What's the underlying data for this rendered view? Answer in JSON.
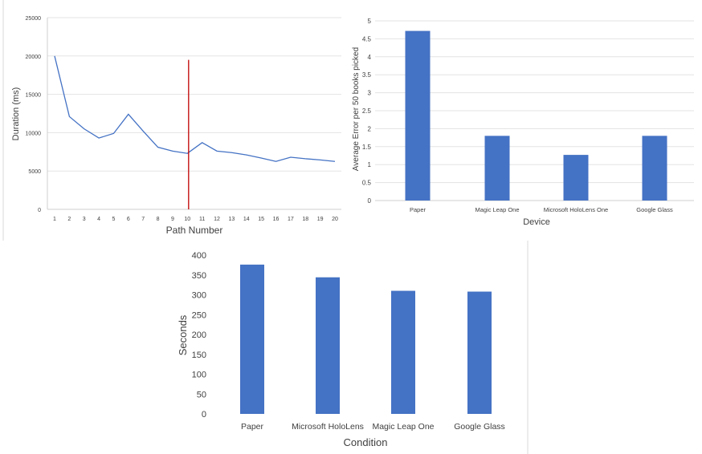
{
  "chart_data": [
    {
      "type": "line",
      "xlabel": "Path Number",
      "ylabel": "Duration (ms)",
      "ylim": [
        0,
        25000
      ],
      "yticks": [
        "0",
        "5000",
        "10000",
        "15000",
        "20000",
        "25000"
      ],
      "categories": [
        "1",
        "2",
        "3",
        "4",
        "5",
        "6",
        "7",
        "8",
        "9",
        "10",
        "11",
        "12",
        "13",
        "14",
        "15",
        "16",
        "17",
        "18",
        "19",
        "20"
      ],
      "values": [
        20000,
        12100,
        10500,
        9300,
        9900,
        12400,
        10200,
        8100,
        7600,
        7300,
        8700,
        7600,
        7400,
        7100,
        6700,
        6250,
        6800,
        6600,
        6450,
        6250
      ],
      "vertical_marker": {
        "x": 10,
        "y_top": 19500,
        "color": "#c00000"
      },
      "line_color": "#4472c4",
      "grid": true
    },
    {
      "type": "bar",
      "xlabel": "Device",
      "ylabel": "Average Error per 50 books picked",
      "ylim": [
        0,
        5
      ],
      "yticks": [
        "0",
        "0.5",
        "1",
        "1.5",
        "2",
        "2.5",
        "3",
        "3.5",
        "4",
        "4.5",
        "5"
      ],
      "categories": [
        "Paper",
        "Magic Leap One",
        "Microsoft HoloLens One",
        "Google Glass"
      ],
      "values": [
        4.72,
        1.8,
        1.27,
        1.8
      ],
      "bar_color": "#4472c4",
      "grid": true
    },
    {
      "type": "bar",
      "xlabel": "Condition",
      "ylabel": "Seconds",
      "ylim": [
        0,
        400
      ],
      "yticks": [
        "0",
        "50",
        "100",
        "150",
        "200",
        "250",
        "300",
        "350",
        "400"
      ],
      "categories": [
        "Paper",
        "Microsoft HoloLens",
        "Magic Leap One",
        "Google Glass"
      ],
      "values": [
        376,
        344,
        310,
        308
      ],
      "bar_color": "#4472c4",
      "grid": false
    }
  ]
}
